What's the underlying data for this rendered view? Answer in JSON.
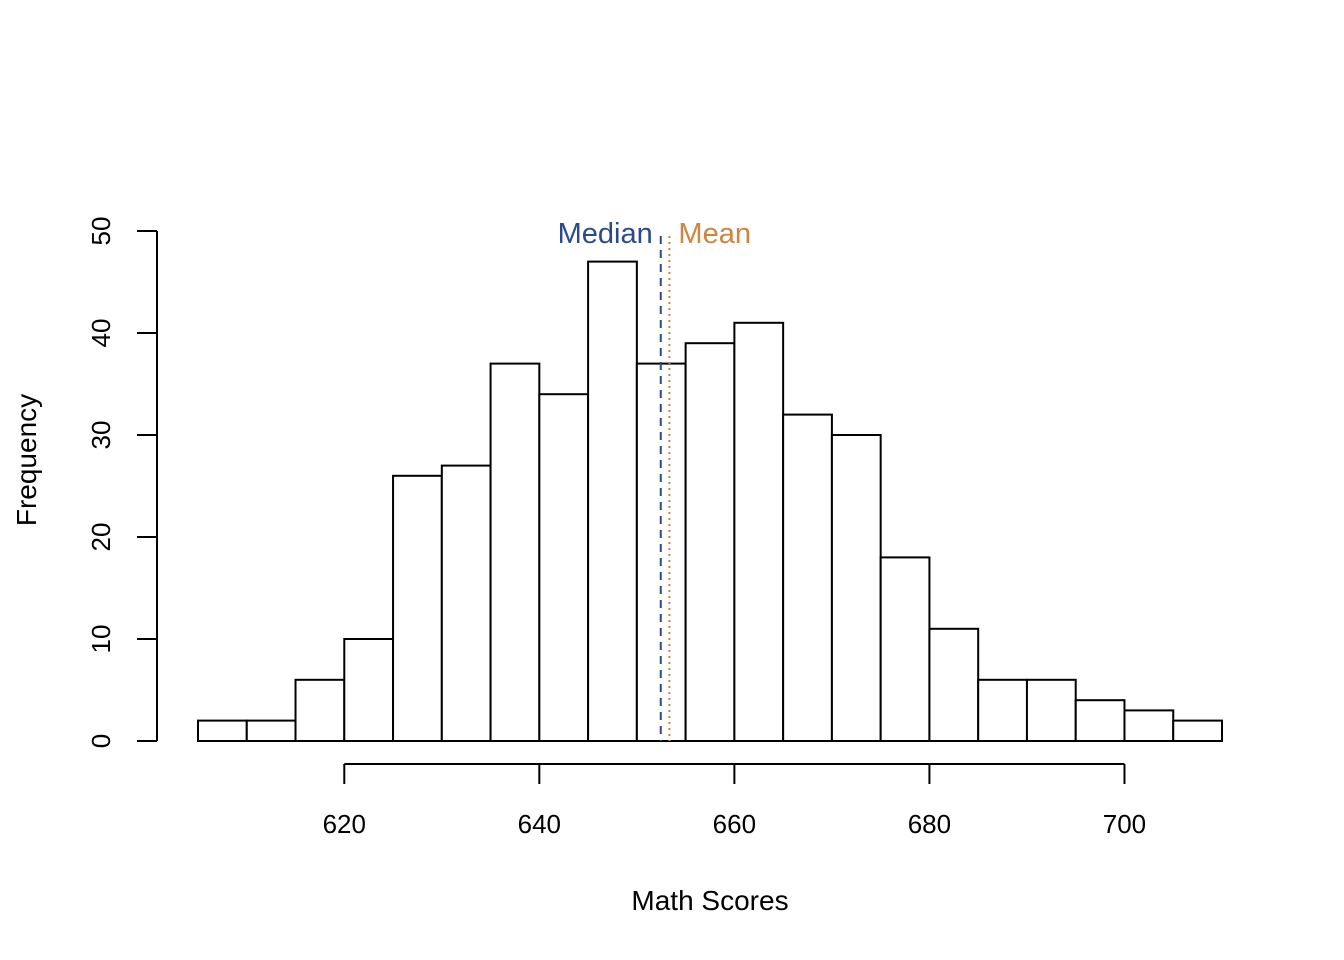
{
  "chart_data": {
    "type": "histogram",
    "title": "",
    "xlabel": "Math Scores",
    "ylabel": "Frequency",
    "bins": [
      {
        "x0": 605,
        "x1": 610,
        "count": 2
      },
      {
        "x0": 610,
        "x1": 615,
        "count": 2
      },
      {
        "x0": 615,
        "x1": 620,
        "count": 6
      },
      {
        "x0": 620,
        "x1": 625,
        "count": 10
      },
      {
        "x0": 625,
        "x1": 630,
        "count": 26
      },
      {
        "x0": 630,
        "x1": 635,
        "count": 27
      },
      {
        "x0": 635,
        "x1": 640,
        "count": 37
      },
      {
        "x0": 640,
        "x1": 645,
        "count": 34
      },
      {
        "x0": 645,
        "x1": 650,
        "count": 47
      },
      {
        "x0": 650,
        "x1": 655,
        "count": 37
      },
      {
        "x0": 655,
        "x1": 660,
        "count": 39
      },
      {
        "x0": 660,
        "x1": 665,
        "count": 41
      },
      {
        "x0": 665,
        "x1": 670,
        "count": 32
      },
      {
        "x0": 670,
        "x1": 675,
        "count": 30
      },
      {
        "x0": 675,
        "x1": 680,
        "count": 18
      },
      {
        "x0": 680,
        "x1": 685,
        "count": 11
      },
      {
        "x0": 685,
        "x1": 690,
        "count": 6
      },
      {
        "x0": 690,
        "x1": 695,
        "count": 6
      },
      {
        "x0": 695,
        "x1": 700,
        "count": 4
      },
      {
        "x0": 700,
        "x1": 705,
        "count": 3
      },
      {
        "x0": 705,
        "x1": 710,
        "count": 2
      }
    ],
    "xlim": [
      605,
      710
    ],
    "ylim": [
      0,
      50
    ],
    "xticks": [
      620,
      640,
      660,
      680,
      700
    ],
    "yticks": [
      0,
      10,
      20,
      30,
      40,
      50
    ],
    "grid": false,
    "reference_lines": [
      {
        "label": "Median",
        "value": 652.45,
        "color": "#2a4a8c",
        "style": "dashed"
      },
      {
        "label": "Mean",
        "value": 653.34,
        "color": "#cd853f",
        "style": "dotted"
      }
    ]
  }
}
